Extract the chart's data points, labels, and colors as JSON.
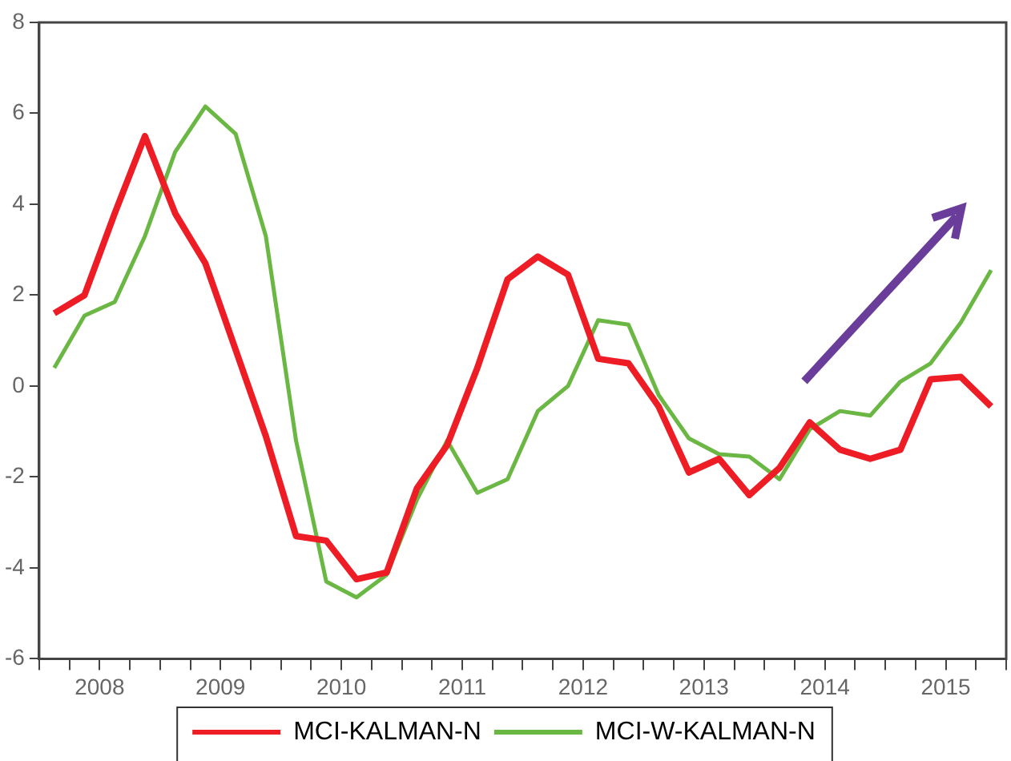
{
  "chart_data": {
    "type": "line",
    "x": [
      2008.125,
      2008.375,
      2008.625,
      2008.875,
      2009.125,
      2009.375,
      2009.625,
      2009.875,
      2010.125,
      2010.375,
      2010.625,
      2010.875,
      2011.125,
      2011.375,
      2011.625,
      2011.875,
      2012.125,
      2012.375,
      2012.625,
      2012.875,
      2013.125,
      2013.375,
      2013.625,
      2013.875,
      2014.125,
      2014.375,
      2014.625,
      2014.875,
      2015.125,
      2015.375,
      2015.625,
      2015.875
    ],
    "series": [
      {
        "name": "MCI-KALMAN-N",
        "color": "#ee1c25",
        "values": [
          1.6,
          2.0,
          3.8,
          5.5,
          3.8,
          2.7,
          0.8,
          -1.1,
          -3.3,
          -3.4,
          -4.25,
          -4.1,
          -2.25,
          -1.3,
          0.4,
          2.35,
          2.85,
          2.45,
          0.6,
          0.5,
          -0.45,
          -1.9,
          -1.6,
          -2.4,
          -1.8,
          -0.8,
          -1.4,
          -1.6,
          -1.4,
          0.15,
          0.2,
          -0.45
        ]
      },
      {
        "name": "MCI-W-KALMAN-N",
        "color": "#6ab843",
        "values": [
          0.4,
          1.55,
          1.85,
          3.3,
          5.15,
          6.15,
          5.55,
          3.3,
          -1.2,
          -4.3,
          -4.65,
          -4.15,
          -2.5,
          -1.2,
          -2.35,
          -2.05,
          -0.55,
          0.0,
          1.45,
          1.35,
          -0.2,
          -1.15,
          -1.5,
          -1.55,
          -2.05,
          -0.95,
          -0.55,
          -0.65,
          0.1,
          0.5,
          1.4,
          2.55
        ]
      }
    ],
    "xlim": [
      2008,
      2016
    ],
    "xticks": [
      {
        "value": 2008,
        "label": null
      },
      {
        "value": 2008.25,
        "label": null
      },
      {
        "value": 2008.5,
        "label": "2008"
      },
      {
        "value": 2008.75,
        "label": null
      },
      {
        "value": 2009,
        "label": null
      },
      {
        "value": 2009.25,
        "label": null
      },
      {
        "value": 2009.5,
        "label": "2009"
      },
      {
        "value": 2009.75,
        "label": null
      },
      {
        "value": 2010,
        "label": null
      },
      {
        "value": 2010.25,
        "label": null
      },
      {
        "value": 2010.5,
        "label": "2010"
      },
      {
        "value": 2010.75,
        "label": null
      },
      {
        "value": 2011,
        "label": null
      },
      {
        "value": 2011.25,
        "label": null
      },
      {
        "value": 2011.5,
        "label": "2011"
      },
      {
        "value": 2011.75,
        "label": null
      },
      {
        "value": 2012,
        "label": null
      },
      {
        "value": 2012.25,
        "label": null
      },
      {
        "value": 2012.5,
        "label": "2012"
      },
      {
        "value": 2012.75,
        "label": null
      },
      {
        "value": 2013,
        "label": null
      },
      {
        "value": 2013.25,
        "label": null
      },
      {
        "value": 2013.5,
        "label": "2013"
      },
      {
        "value": 2013.75,
        "label": null
      },
      {
        "value": 2014,
        "label": null
      },
      {
        "value": 2014.25,
        "label": null
      },
      {
        "value": 2014.5,
        "label": "2014"
      },
      {
        "value": 2014.75,
        "label": null
      },
      {
        "value": 2015,
        "label": null
      },
      {
        "value": 2015.25,
        "label": null
      },
      {
        "value": 2015.5,
        "label": "2015"
      },
      {
        "value": 2015.75,
        "label": null
      },
      {
        "value": 2016,
        "label": null
      }
    ],
    "ylim": [
      -6,
      8
    ],
    "yticks": [
      -6,
      -4,
      -2,
      0,
      2,
      4,
      6,
      8
    ],
    "grid": false,
    "legend": "bottom",
    "marker": "none",
    "line_style": "solid"
  }
}
